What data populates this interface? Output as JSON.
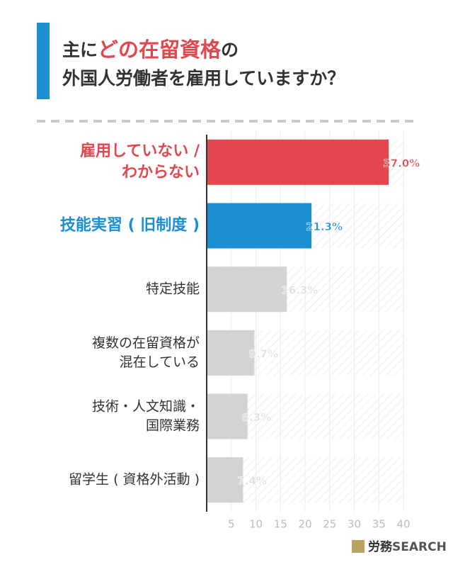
{
  "chart_data": {
    "type": "bar",
    "orientation": "horizontal",
    "title": [
      "主に",
      "どの在留資格",
      "の",
      "外国人労働者を雇用していますか？"
    ],
    "categories": [
      [
        "雇用していない /",
        "わからない"
      ],
      [
        "技能実習 ( 旧制度 )"
      ],
      [
        "特定技能"
      ],
      [
        "複数の在留資格が",
        "混在している"
      ],
      [
        "技術・人文知識・",
        "国際業務"
      ],
      [
        "留学生 ( 資格外活動 )"
      ]
    ],
    "values": [
      37.0,
      21.3,
      16.3,
      9.7,
      8.3,
      7.4
    ],
    "value_labels": [
      "37.0%",
      "21.3%",
      "16.3%",
      "9.7%",
      "8.3%",
      "7.4%"
    ],
    "colors": [
      "#e2474d",
      "#1c8fd3",
      "#d3d3d3",
      "#d3d3d3",
      "#d3d3d3",
      "#d3d3d3"
    ],
    "label_colors": [
      "#e2474d",
      "#1c8fd3",
      "#333333",
      "#333333",
      "#333333",
      "#333333"
    ],
    "value_label_colors": [
      "#e2474d",
      "#1c8fd3",
      "#dcdcdc",
      "#dcdcdc",
      "#dcdcdc",
      "#dcdcdc"
    ],
    "xlim": [
      0,
      40
    ],
    "xticks": [
      5,
      10,
      15,
      20,
      25,
      30,
      35,
      40
    ],
    "grid": true,
    "brand": [
      "労務",
      "SEARCH"
    ]
  }
}
